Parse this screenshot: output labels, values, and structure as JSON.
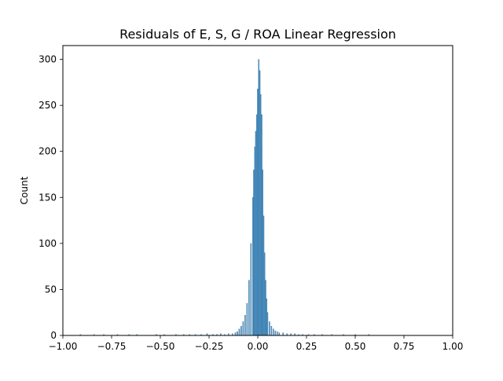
{
  "chart_data": {
    "type": "bar",
    "title": "Residuals of E, S, G / ROA Linear Regression",
    "xlabel": "",
    "ylabel": "Count",
    "xlim": [
      -1.0,
      1.0
    ],
    "ylim": [
      0,
      315
    ],
    "xticks": [
      "−1.00",
      "−0.75",
      "−0.50",
      "−0.25",
      "0.00",
      "0.25",
      "0.50",
      "0.75",
      "1.00"
    ],
    "xtick_values": [
      -1.0,
      -0.75,
      -0.5,
      -0.25,
      0.0,
      0.25,
      0.5,
      0.75,
      1.0
    ],
    "yticks": [
      "0",
      "50",
      "100",
      "150",
      "200",
      "250",
      "300"
    ],
    "ytick_values": [
      0,
      50,
      100,
      150,
      200,
      250,
      300
    ],
    "grid": false,
    "bar_color": "#4c90c0",
    "bar_edge_color": "#2f6f9e",
    "bins": [
      {
        "x": -0.91,
        "count": 1
      },
      {
        "x": -0.84,
        "count": 1
      },
      {
        "x": -0.79,
        "count": 1
      },
      {
        "x": -0.72,
        "count": 1
      },
      {
        "x": -0.66,
        "count": 1
      },
      {
        "x": -0.62,
        "count": 1
      },
      {
        "x": -0.52,
        "count": 1
      },
      {
        "x": -0.48,
        "count": 1
      },
      {
        "x": -0.42,
        "count": 1
      },
      {
        "x": -0.38,
        "count": 1
      },
      {
        "x": -0.35,
        "count": 1
      },
      {
        "x": -0.32,
        "count": 1
      },
      {
        "x": -0.29,
        "count": 1
      },
      {
        "x": -0.26,
        "count": 2
      },
      {
        "x": -0.23,
        "count": 1
      },
      {
        "x": -0.21,
        "count": 1
      },
      {
        "x": -0.19,
        "count": 2
      },
      {
        "x": -0.17,
        "count": 1
      },
      {
        "x": -0.15,
        "count": 2
      },
      {
        "x": -0.13,
        "count": 2
      },
      {
        "x": -0.115,
        "count": 3
      },
      {
        "x": -0.105,
        "count": 4
      },
      {
        "x": -0.095,
        "count": 7
      },
      {
        "x": -0.085,
        "count": 10
      },
      {
        "x": -0.075,
        "count": 15
      },
      {
        "x": -0.065,
        "count": 22
      },
      {
        "x": -0.055,
        "count": 35
      },
      {
        "x": -0.045,
        "count": 60
      },
      {
        "x": -0.035,
        "count": 100
      },
      {
        "x": -0.025,
        "count": 150
      },
      {
        "x": -0.02,
        "count": 180
      },
      {
        "x": -0.015,
        "count": 205
      },
      {
        "x": -0.01,
        "count": 222
      },
      {
        "x": -0.005,
        "count": 240
      },
      {
        "x": 0.0,
        "count": 268
      },
      {
        "x": 0.005,
        "count": 300
      },
      {
        "x": 0.01,
        "count": 288
      },
      {
        "x": 0.015,
        "count": 262
      },
      {
        "x": 0.02,
        "count": 240
      },
      {
        "x": 0.025,
        "count": 180
      },
      {
        "x": 0.03,
        "count": 130
      },
      {
        "x": 0.035,
        "count": 90
      },
      {
        "x": 0.04,
        "count": 60
      },
      {
        "x": 0.045,
        "count": 40
      },
      {
        "x": 0.05,
        "count": 25
      },
      {
        "x": 0.06,
        "count": 15
      },
      {
        "x": 0.07,
        "count": 10
      },
      {
        "x": 0.08,
        "count": 7
      },
      {
        "x": 0.09,
        "count": 5
      },
      {
        "x": 0.1,
        "count": 4
      },
      {
        "x": 0.11,
        "count": 3
      },
      {
        "x": 0.13,
        "count": 3
      },
      {
        "x": 0.15,
        "count": 2
      },
      {
        "x": 0.17,
        "count": 2
      },
      {
        "x": 0.19,
        "count": 2
      },
      {
        "x": 0.21,
        "count": 1
      },
      {
        "x": 0.23,
        "count": 1
      },
      {
        "x": 0.26,
        "count": 1
      },
      {
        "x": 0.29,
        "count": 1
      },
      {
        "x": 0.33,
        "count": 1
      },
      {
        "x": 0.38,
        "count": 1
      },
      {
        "x": 0.44,
        "count": 1
      },
      {
        "x": 0.5,
        "count": 1
      },
      {
        "x": 0.57,
        "count": 1
      }
    ]
  }
}
